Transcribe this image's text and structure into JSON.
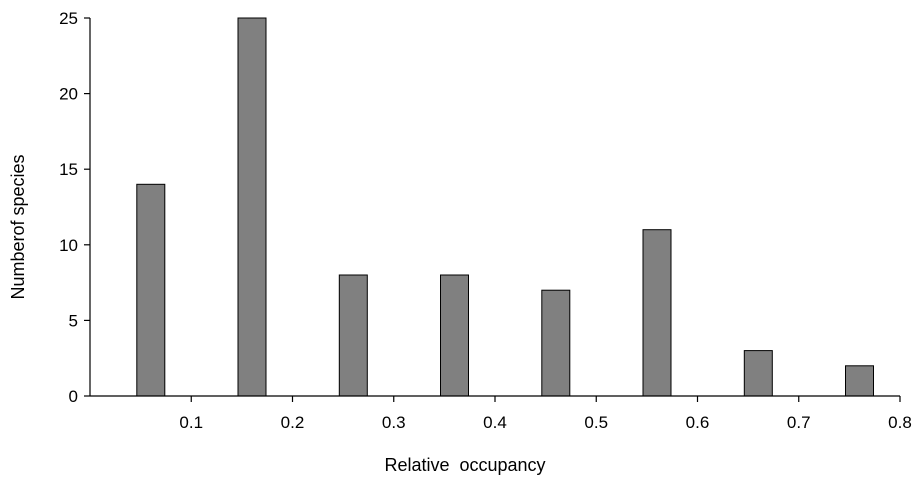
{
  "chart_data": {
    "type": "bar",
    "title": "",
    "xlabel": "Relative  occupancy",
    "ylabel": "Numberof species",
    "bars": [
      {
        "x": 0.06,
        "value": 14
      },
      {
        "x": 0.16,
        "value": 25
      },
      {
        "x": 0.26,
        "value": 8
      },
      {
        "x": 0.36,
        "value": 8
      },
      {
        "x": 0.46,
        "value": 7
      },
      {
        "x": 0.56,
        "value": 11
      },
      {
        "x": 0.66,
        "value": 3
      },
      {
        "x": 0.76,
        "value": 2
      }
    ],
    "xticks": [
      "0.1",
      "0.2",
      "0.3",
      "0.4",
      "0.5",
      "0.6",
      "0.7",
      "0.8"
    ],
    "yticks": [
      "0",
      "5",
      "10",
      "15",
      "20",
      "25"
    ],
    "xlim": [
      0.0,
      0.8
    ],
    "ylim": [
      0,
      25
    ],
    "grid": false,
    "bar_color": "#808080",
    "bar_edge_color": "#000000"
  }
}
